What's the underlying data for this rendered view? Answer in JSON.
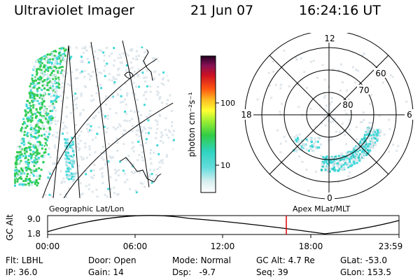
{
  "header": {
    "title": "Ultraviolet Imager",
    "date": "21 Jun 07",
    "time": "16:24:16 UT"
  },
  "map_labels": {
    "geographic": "Geographic Lat/Lon",
    "apex": "Apex MLat/MLT"
  },
  "colorbar": {
    "unit_label": "photon cm⁻²s⁻¹",
    "tick_100": "100",
    "tick_10": "10"
  },
  "polar": {
    "mlt_top": "12",
    "mlt_left": "18",
    "mlt_right": "6",
    "mlt_bottom": "0",
    "lat_60": "60",
    "lat_70": "70",
    "lat_80": "80"
  },
  "altitude_plot": {
    "ylabel": "GC Alt",
    "ytick_top": "9.0",
    "ytick_bottom": "1.8",
    "xticks": [
      "00:00",
      "06:00",
      "12:00",
      "18:00",
      "23:59"
    ]
  },
  "info": {
    "row1": [
      {
        "label": "Flt:",
        "value": "LBHL"
      },
      {
        "label": "Door:",
        "value": "Open"
      },
      {
        "label": "Mode:",
        "value": "Normal"
      },
      {
        "label": "GC Alt:",
        "value": "4.7 Re"
      },
      {
        "label": "GLat:",
        "value": "-53.0"
      }
    ],
    "row2": [
      {
        "label": "IP:",
        "value": "36.0"
      },
      {
        "label": "Gain:",
        "value": "14"
      },
      {
        "label": "Dsp:",
        "value": "-9.7"
      },
      {
        "label": "Seq:",
        "value": "39"
      },
      {
        "label": "GLon:",
        "value": "153.5"
      }
    ]
  },
  "colors": {
    "marker": "#e00000",
    "aurora_green": "#33cc55",
    "aurora_cyan": "#40d8d8"
  }
}
